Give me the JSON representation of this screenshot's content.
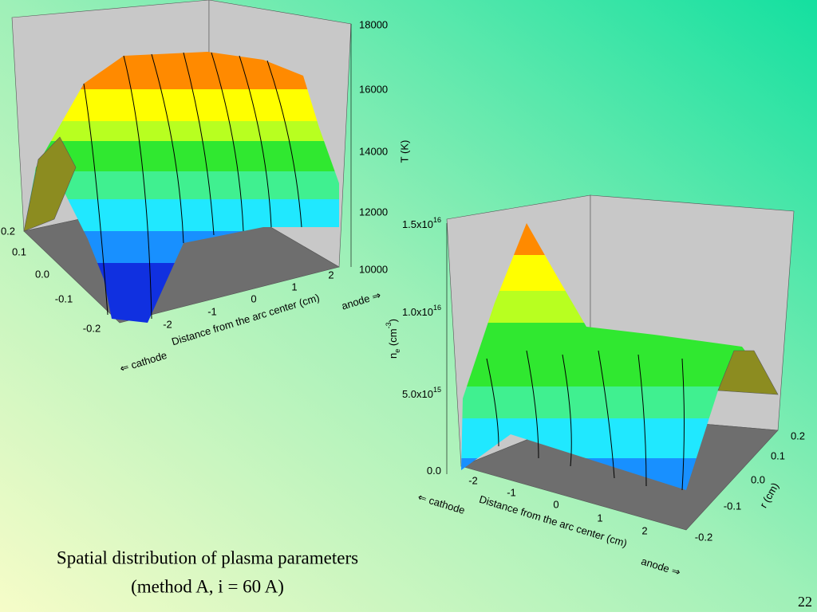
{
  "slide": {
    "caption": [
      "Spatial distribution of plasma parameters",
      "(method A, i = 60 A)"
    ],
    "page_number": "22",
    "plots": [
      {
        "z_ticks": [
          "18000",
          "16000",
          "14000",
          "12000",
          "10000"
        ],
        "z_label": "T (K)",
        "x_ticks": [
          "-2",
          "-1",
          "0",
          "1",
          "2"
        ],
        "x_label": "Distance from the arc center (cm)",
        "r_ticks": [
          "0.2",
          "0.1",
          "0.0",
          "-0.1",
          "-0.2"
        ],
        "anode": "anode ⇒",
        "cathode": "⇐ cathode"
      },
      {
        "z_ticks": [
          {
            "base": "1.5x10",
            "sup": "16"
          },
          {
            "base": "1.0x10",
            "sup": "16"
          },
          {
            "base": "5.0x10",
            "sup": "15"
          },
          {
            "base": "0.0"
          }
        ],
        "z_label": {
          "base": "n",
          "sub": "e",
          "unit": " (cm",
          "sup": "-3",
          "close": ")"
        },
        "x_ticks": [
          "-2",
          "-1",
          "0",
          "1",
          "2"
        ],
        "x_label": "Distance from the arc center (cm)",
        "r_ticks": [
          "0.2",
          "0.1",
          "0.0",
          "-0.1",
          "-0.2"
        ],
        "r_label": "r (cm)",
        "anode": "anode ⇒",
        "cathode": "⇐ cathode"
      }
    ]
  }
}
